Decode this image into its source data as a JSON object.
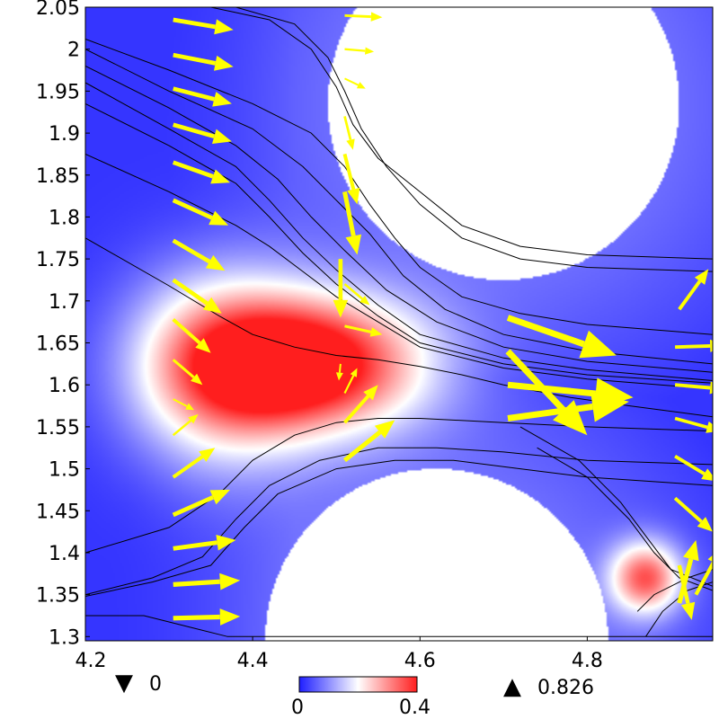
{
  "chart_data": {
    "type": "heatmap",
    "title": "",
    "xlabel": "",
    "ylabel": "",
    "xlim": [
      4.2,
      4.95
    ],
    "ylim": [
      1.295,
      2.05
    ],
    "x_ticks": [
      4.2,
      4.4,
      4.6,
      4.8
    ],
    "x_tick_labels": [
      "4.2",
      "4.4",
      "4.6",
      "4.8"
    ],
    "y_ticks": [
      1.3,
      1.35,
      1.4,
      1.45,
      1.5,
      1.55,
      1.6,
      1.65,
      1.7,
      1.75,
      1.8,
      1.85,
      1.9,
      1.95,
      2.0,
      2.05
    ],
    "y_tick_labels": [
      "1.3",
      "1.35",
      "1.4",
      "1.45",
      "1.5",
      "1.55",
      "1.6",
      "1.65",
      "1.7",
      "1.75",
      "1.8",
      "1.85",
      "1.9",
      "1.95",
      "2",
      "2.05"
    ],
    "colormap": {
      "colors": [
        "#1e1eff",
        "#ffffff",
        "#ff1e1e"
      ],
      "range_labels": [
        "0",
        "0.4"
      ],
      "range": [
        0,
        0.4
      ]
    },
    "min_marker": {
      "symbol": "▼",
      "value": "0"
    },
    "max_marker": {
      "symbol": "▲",
      "value": "0.826"
    },
    "obstacles": [
      {
        "cx": 4.62,
        "cy": 1.295,
        "r": 0.205
      },
      {
        "cx": 4.7,
        "cy": 1.935,
        "r": 0.21
      }
    ],
    "hotspots": [
      {
        "x": 4.47,
        "y": 1.625,
        "sx": 0.095,
        "sy": 0.055,
        "v": 0.42
      },
      {
        "x": 4.36,
        "y": 1.62,
        "sx": 0.075,
        "sy": 0.08,
        "v": 0.26
      },
      {
        "x": 4.87,
        "y": 1.37,
        "sx": 0.03,
        "sy": 0.03,
        "v": 0.3
      }
    ],
    "arrow_color": "#ffff00",
    "arrows": [
      {
        "x": 4.305,
        "y": 2.035,
        "u": 0.072,
        "v": -0.012
      },
      {
        "x": 4.305,
        "y": 1.993,
        "u": 0.072,
        "v": -0.014
      },
      {
        "x": 4.305,
        "y": 1.953,
        "u": 0.07,
        "v": -0.018
      },
      {
        "x": 4.305,
        "y": 1.91,
        "u": 0.07,
        "v": -0.02
      },
      {
        "x": 4.305,
        "y": 1.865,
        "u": 0.068,
        "v": -0.024
      },
      {
        "x": 4.305,
        "y": 1.82,
        "u": 0.066,
        "v": -0.03
      },
      {
        "x": 4.305,
        "y": 1.772,
        "u": 0.062,
        "v": -0.036
      },
      {
        "x": 4.305,
        "y": 1.725,
        "u": 0.058,
        "v": -0.04
      },
      {
        "x": 4.305,
        "y": 1.678,
        "u": 0.045,
        "v": -0.04
      },
      {
        "x": 4.305,
        "y": 1.63,
        "u": 0.035,
        "v": -0.03
      },
      {
        "x": 4.305,
        "y": 1.583,
        "u": 0.025,
        "v": -0.013
      },
      {
        "x": 4.305,
        "y": 1.54,
        "u": 0.03,
        "v": 0.025
      },
      {
        "x": 4.305,
        "y": 1.49,
        "u": 0.05,
        "v": 0.035
      },
      {
        "x": 4.305,
        "y": 1.445,
        "u": 0.068,
        "v": 0.03
      },
      {
        "x": 4.305,
        "y": 1.405,
        "u": 0.075,
        "v": 0.01
      },
      {
        "x": 4.305,
        "y": 1.362,
        "u": 0.08,
        "v": 0.005
      },
      {
        "x": 4.305,
        "y": 1.322,
        "u": 0.08,
        "v": 0.002
      },
      {
        "x": 4.51,
        "y": 2.04,
        "u": 0.045,
        "v": -0.002
      },
      {
        "x": 4.51,
        "y": 2.0,
        "u": 0.035,
        "v": -0.003
      },
      {
        "x": 4.51,
        "y": 1.965,
        "u": 0.025,
        "v": -0.012
      },
      {
        "x": 4.51,
        "y": 1.92,
        "u": 0.01,
        "v": -0.04
      },
      {
        "x": 4.51,
        "y": 1.875,
        "u": 0.015,
        "v": -0.06
      },
      {
        "x": 4.51,
        "y": 1.83,
        "u": 0.015,
        "v": -0.075
      },
      {
        "x": 4.505,
        "y": 1.75,
        "u": 0.0,
        "v": -0.07
      },
      {
        "x": 4.51,
        "y": 1.72,
        "u": 0.03,
        "v": -0.025
      },
      {
        "x": 4.51,
        "y": 1.67,
        "u": 0.045,
        "v": -0.01
      },
      {
        "x": 4.505,
        "y": 1.625,
        "u": -0.002,
        "v": -0.02
      },
      {
        "x": 4.51,
        "y": 1.59,
        "u": 0.015,
        "v": 0.03
      },
      {
        "x": 4.51,
        "y": 1.555,
        "u": 0.04,
        "v": 0.045
      },
      {
        "x": 4.51,
        "y": 1.51,
        "u": 0.06,
        "v": 0.048
      },
      {
        "x": 4.705,
        "y": 1.68,
        "u": 0.13,
        "v": -0.045
      },
      {
        "x": 4.705,
        "y": 1.64,
        "u": 0.095,
        "v": -0.1
      },
      {
        "x": 4.705,
        "y": 1.6,
        "u": 0.15,
        "v": -0.015
      },
      {
        "x": 4.705,
        "y": 1.56,
        "u": 0.145,
        "v": 0.02
      },
      {
        "x": 4.91,
        "y": 1.69,
        "u": 0.035,
        "v": 0.048
      },
      {
        "x": 4.905,
        "y": 1.645,
        "u": 0.06,
        "v": 0.002
      },
      {
        "x": 4.905,
        "y": 1.6,
        "u": 0.06,
        "v": -0.005
      },
      {
        "x": 4.905,
        "y": 1.56,
        "u": 0.055,
        "v": -0.015
      },
      {
        "x": 4.905,
        "y": 1.515,
        "u": 0.05,
        "v": -0.03
      },
      {
        "x": 4.905,
        "y": 1.465,
        "u": 0.045,
        "v": -0.04
      },
      {
        "x": 4.91,
        "y": 1.385,
        "u": 0.015,
        "v": -0.065
      },
      {
        "x": 4.91,
        "y": 1.34,
        "u": 0.02,
        "v": 0.075
      },
      {
        "x": 4.93,
        "y": 1.35,
        "u": 0.03,
        "v": 0.055
      }
    ],
    "streamlines": [
      {
        "x": [
          4.2,
          4.3,
          4.36,
          4.4,
          4.45,
          4.5,
          4.55,
          4.6,
          4.65,
          4.7,
          4.78,
          4.85,
          4.95
        ],
        "y": [
          1.775,
          1.718,
          1.682,
          1.66,
          1.645,
          1.635,
          1.63,
          1.622,
          1.612,
          1.6,
          1.585,
          1.575,
          1.562
        ]
      },
      {
        "x": [
          4.2,
          4.3,
          4.38,
          4.42,
          4.46,
          4.5,
          4.55,
          4.6,
          4.7,
          4.8,
          4.95
        ],
        "y": [
          1.935,
          1.885,
          1.84,
          1.8,
          1.757,
          1.72,
          1.682,
          1.65,
          1.625,
          1.612,
          1.602
        ]
      },
      {
        "x": [
          4.2,
          4.3,
          4.38,
          4.42,
          4.46,
          4.5,
          4.55,
          4.6,
          4.7,
          4.8,
          4.95
        ],
        "y": [
          1.96,
          1.905,
          1.86,
          1.82,
          1.775,
          1.737,
          1.695,
          1.66,
          1.632,
          1.618,
          1.605
        ]
      },
      {
        "x": [
          4.2,
          4.3,
          4.38,
          4.43,
          4.47,
          4.51,
          4.56,
          4.62,
          4.7,
          4.8,
          4.95
        ],
        "y": [
          1.98,
          1.93,
          1.885,
          1.845,
          1.8,
          1.76,
          1.713,
          1.675,
          1.645,
          1.628,
          1.615
        ]
      },
      {
        "x": [
          4.2,
          4.3,
          4.4,
          4.46,
          4.5,
          4.54,
          4.58,
          4.63,
          4.7,
          4.8,
          4.95
        ],
        "y": [
          2.0,
          1.95,
          1.905,
          1.86,
          1.82,
          1.78,
          1.73,
          1.69,
          1.66,
          1.64,
          1.625
        ]
      },
      {
        "x": [
          4.2,
          4.3,
          4.4,
          4.47,
          4.51,
          4.54,
          4.57,
          4.6,
          4.65,
          4.72,
          4.8,
          4.95
        ],
        "y": [
          2.012,
          1.975,
          1.935,
          1.9,
          1.86,
          1.815,
          1.775,
          1.74,
          1.705,
          1.685,
          1.672,
          1.66
        ]
      },
      {
        "x": [
          4.2,
          4.3,
          4.38,
          4.42,
          4.46,
          4.5,
          4.55,
          4.6,
          4.7,
          4.8,
          4.95
        ],
        "y": [
          1.875,
          1.83,
          1.79,
          1.765,
          1.735,
          1.705,
          1.675,
          1.645,
          1.62,
          1.607,
          1.595
        ]
      },
      {
        "x": [
          4.35,
          4.42,
          4.47,
          4.5,
          4.52,
          4.55,
          4.6,
          4.65,
          4.72,
          4.8,
          4.95
        ],
        "y": [
          2.05,
          2.035,
          2.0,
          1.955,
          1.91,
          1.87,
          1.83,
          1.79,
          1.765,
          1.755,
          1.75
        ]
      },
      {
        "x": [
          4.38,
          4.45,
          4.49,
          4.51,
          4.53,
          4.56,
          4.6,
          4.65,
          4.72,
          4.8,
          4.95
        ],
        "y": [
          2.05,
          2.03,
          1.99,
          1.95,
          1.905,
          1.86,
          1.815,
          1.775,
          1.75,
          1.74,
          1.735
        ]
      },
      {
        "x": [
          4.2,
          4.3,
          4.36,
          4.4,
          4.45,
          4.5,
          4.55,
          4.6,
          4.7,
          4.8,
          4.95
        ],
        "y": [
          1.4,
          1.43,
          1.47,
          1.51,
          1.54,
          1.555,
          1.56,
          1.56,
          1.555,
          1.55,
          1.545
        ]
      },
      {
        "x": [
          4.2,
          4.28,
          4.34,
          4.38,
          4.42,
          4.48,
          4.55,
          4.62,
          4.7,
          4.8,
          4.95
        ],
        "y": [
          1.35,
          1.37,
          1.395,
          1.44,
          1.48,
          1.51,
          1.525,
          1.525,
          1.52,
          1.51,
          1.505
        ]
      },
      {
        "x": [
          4.2,
          4.28,
          4.35,
          4.39,
          4.43,
          4.5,
          4.57,
          4.64,
          4.72,
          4.8,
          4.95
        ],
        "y": [
          1.348,
          1.365,
          1.385,
          1.43,
          1.47,
          1.5,
          1.51,
          1.51,
          1.5,
          1.49,
          1.48
        ]
      },
      {
        "x": [
          4.2,
          4.27,
          4.33,
          4.37,
          4.41,
          4.48,
          4.56,
          4.64,
          4.7,
          4.78,
          4.86,
          4.95
        ],
        "y": [
          1.325,
          1.325,
          1.31,
          1.3,
          1.3,
          1.3,
          1.3,
          1.3,
          1.3,
          1.3,
          1.3,
          1.3
        ]
      },
      {
        "x": [
          4.74,
          4.8,
          4.85,
          4.88,
          4.91,
          4.95
        ],
        "y": [
          1.525,
          1.49,
          1.44,
          1.4,
          1.37,
          1.355
        ]
      },
      {
        "x": [
          4.72,
          4.79,
          4.84,
          4.87,
          4.9,
          4.95
        ],
        "y": [
          1.55,
          1.51,
          1.46,
          1.42,
          1.38,
          1.36
        ]
      },
      {
        "x": [
          4.86,
          4.88,
          4.92,
          4.95
        ],
        "y": [
          1.33,
          1.35,
          1.37,
          1.38
        ]
      },
      {
        "x": [
          4.87,
          4.89,
          4.92,
          4.95
        ],
        "y": [
          1.3,
          1.33,
          1.355,
          1.365
        ]
      }
    ]
  },
  "legend": {
    "min_symbol": "▼",
    "min_value": "0",
    "max_symbol": "▲",
    "max_value": "0.826",
    "colorbar_min_label": "0",
    "colorbar_max_label": "0.4"
  }
}
